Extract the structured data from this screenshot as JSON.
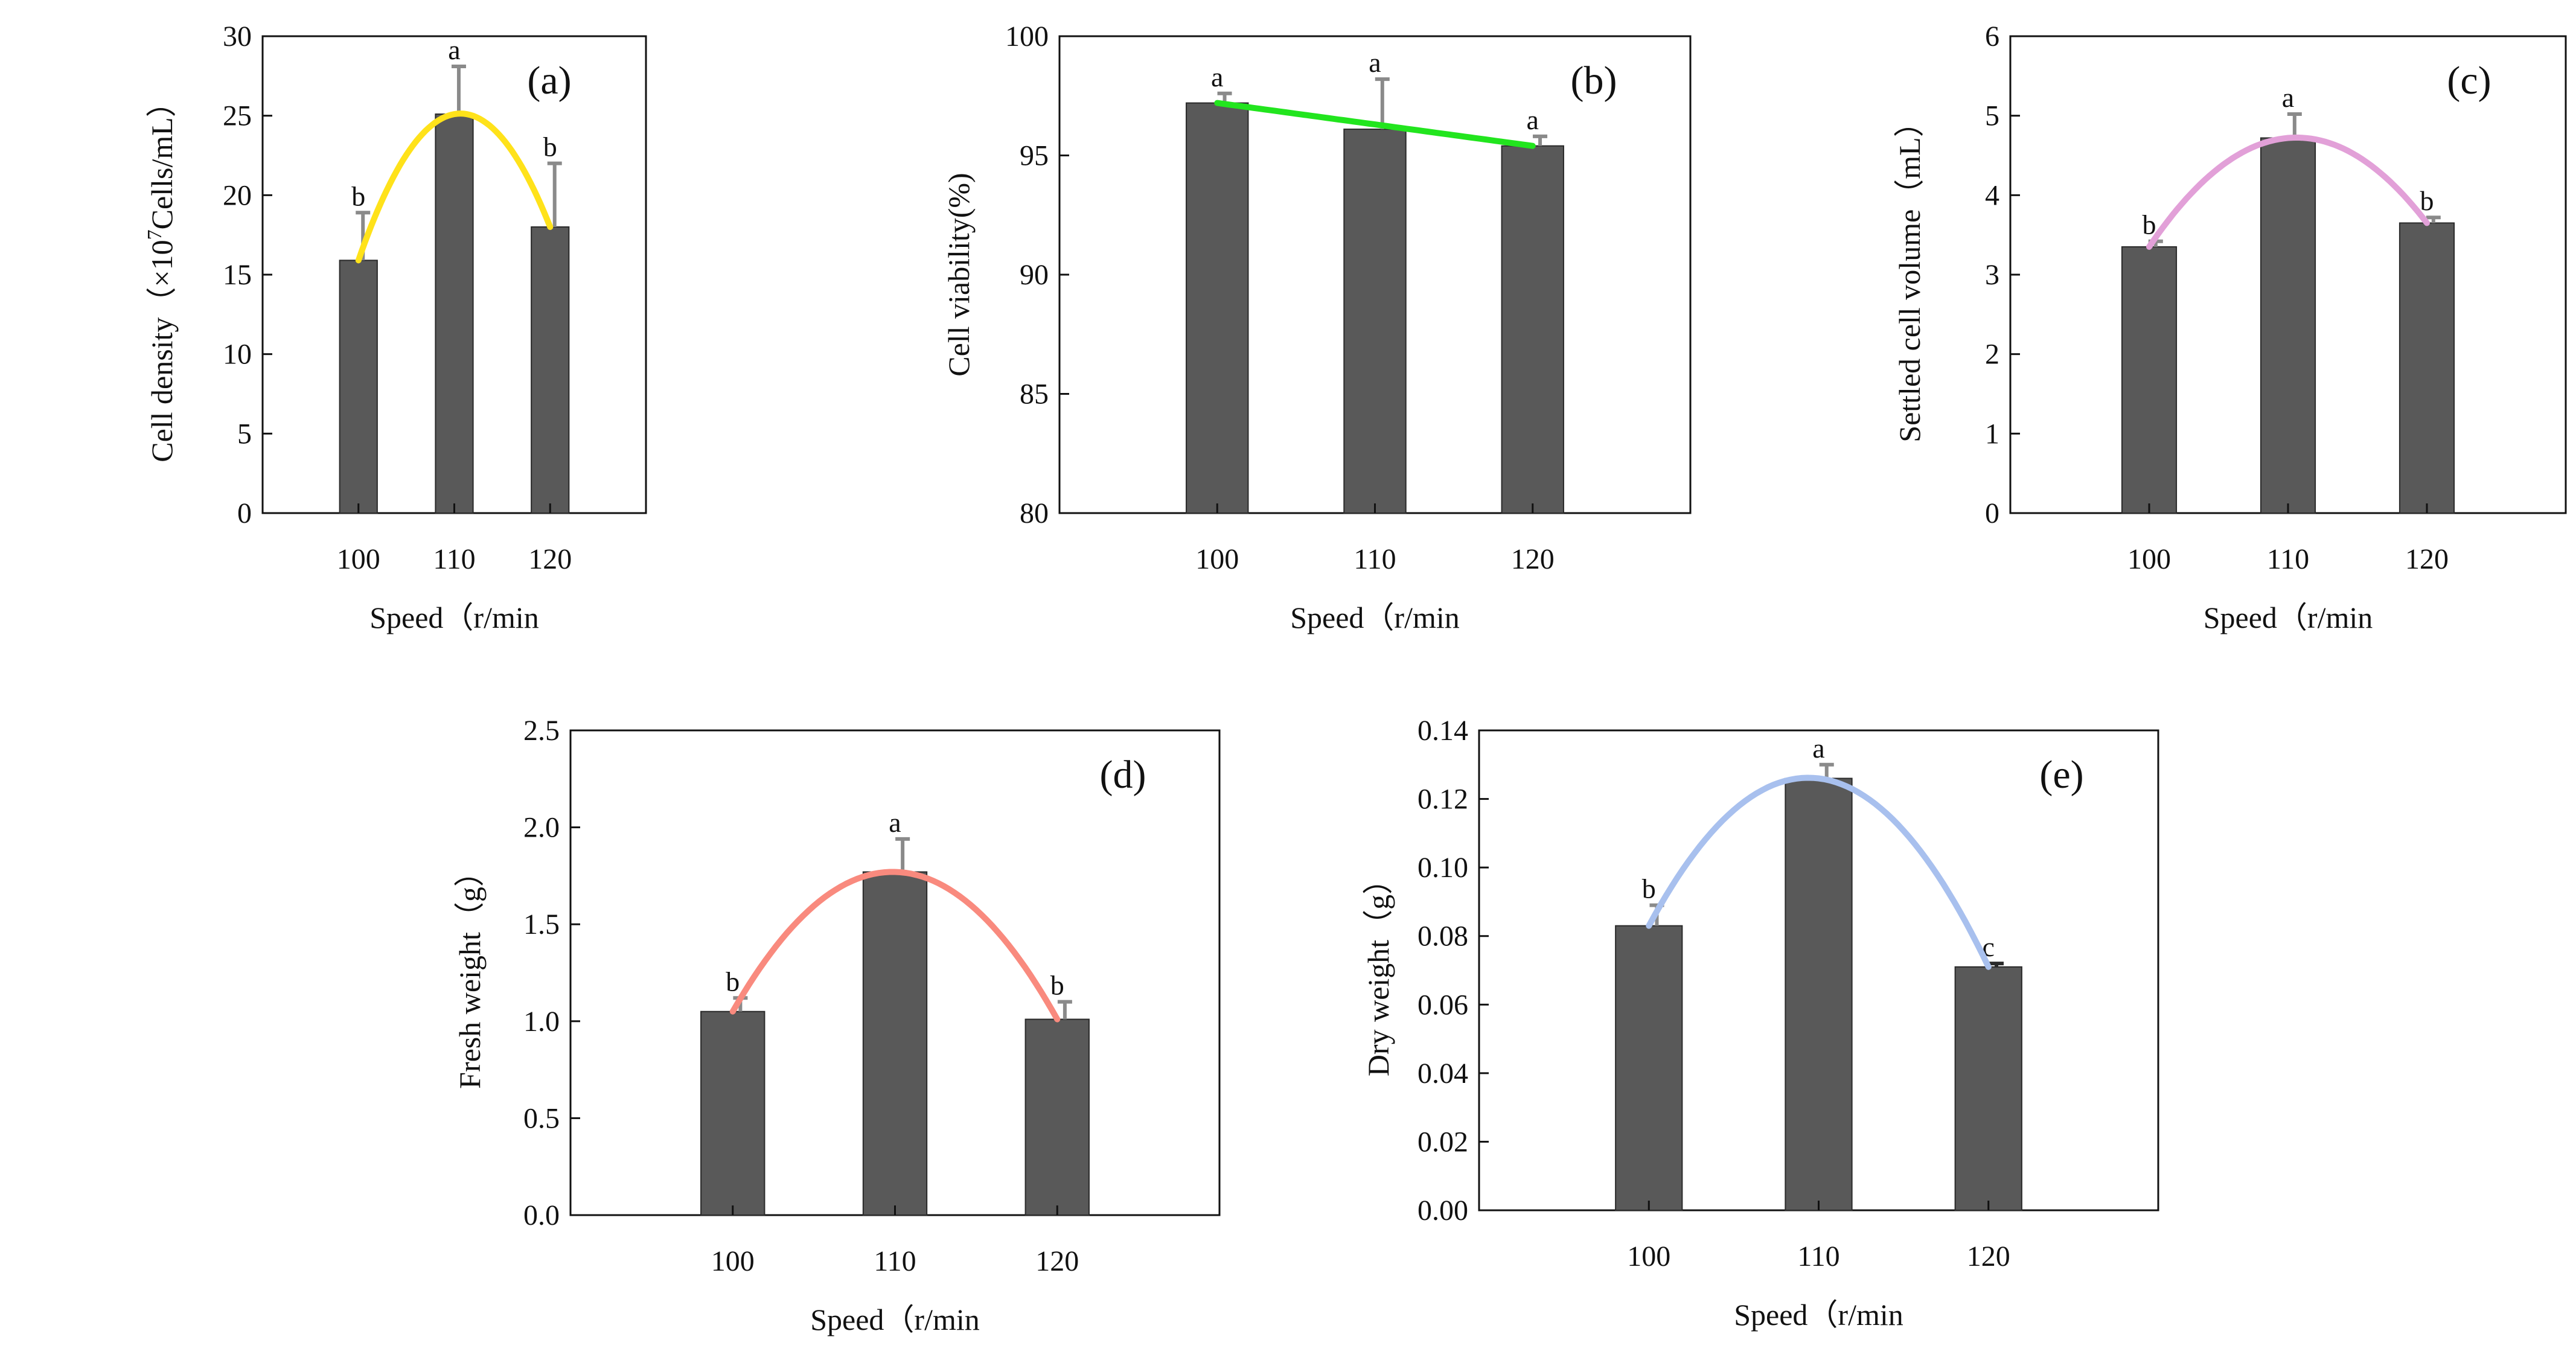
{
  "chart_data": [
    {
      "type": "bar",
      "panel": "(a)",
      "categories": [
        "100",
        "110",
        "120"
      ],
      "values": [
        15.9,
        25.1,
        18.0
      ],
      "errors": [
        3.0,
        3.0,
        4.0
      ],
      "significance": [
        "b",
        "a",
        "b"
      ],
      "xlabel": "Speed（r/min",
      "ylabel": "Cell density（×10^7Cells/mL）",
      "ylim": [
        0,
        30
      ],
      "yticks": [
        "0",
        "5",
        "10",
        "15",
        "20",
        "25",
        "30"
      ],
      "fit": {
        "kind": "quadratic",
        "color": "#ffe21a"
      }
    },
    {
      "type": "bar",
      "panel": "(b)",
      "categories": [
        "100",
        "110",
        "120"
      ],
      "values": [
        97.2,
        96.1,
        95.4
      ],
      "errors": [
        0.4,
        2.1,
        0.4
      ],
      "significance": [
        "a",
        "a",
        "a"
      ],
      "xlabel": "Speed（r/min",
      "ylabel": "Cell viability(%)",
      "ylim": [
        80,
        100
      ],
      "yticks": [
        "80",
        "85",
        "90",
        "95",
        "100"
      ],
      "fit": {
        "kind": "linear",
        "color": "#22e51e"
      }
    },
    {
      "type": "bar",
      "panel": "(c)",
      "categories": [
        "100",
        "110",
        "120"
      ],
      "values": [
        3.35,
        4.72,
        3.65
      ],
      "errors": [
        0.07,
        0.3,
        0.07
      ],
      "significance": [
        "b",
        "a",
        "b"
      ],
      "xlabel": "Speed（r/min",
      "ylabel": "Settled cell volume（mL）",
      "ylim": [
        0,
        6
      ],
      "yticks": [
        "0",
        "1",
        "2",
        "3",
        "4",
        "5",
        "6"
      ],
      "fit": {
        "kind": "quadratic",
        "color": "#e2a0d8"
      }
    },
    {
      "type": "bar",
      "panel": "(d)",
      "categories": [
        "100",
        "110",
        "120"
      ],
      "values": [
        1.05,
        1.77,
        1.01
      ],
      "errors": [
        0.07,
        0.17,
        0.09
      ],
      "significance": [
        "b",
        "a",
        "b"
      ],
      "xlabel": "Speed（r/min",
      "ylabel": "Fresh weight（g）",
      "ylim": [
        0,
        2.5
      ],
      "yticks": [
        "0.0",
        "0.5",
        "1.0",
        "1.5",
        "2.0",
        "2.5"
      ],
      "fit": {
        "kind": "quadratic",
        "color": "#f98a7e"
      }
    },
    {
      "type": "bar",
      "panel": "(e)",
      "categories": [
        "100",
        "110",
        "120"
      ],
      "values": [
        0.083,
        0.126,
        0.071
      ],
      "errors": [
        0.006,
        0.004,
        0.001
      ],
      "significance": [
        "b",
        "a",
        "c"
      ],
      "xlabel": "Speed（r/min",
      "ylabel": "Dry weight（g）",
      "ylim": [
        0,
        0.14
      ],
      "yticks": [
        "0.00",
        "0.02",
        "0.04",
        "0.06",
        "0.08",
        "0.10",
        "0.12",
        "0.14"
      ],
      "fit": {
        "kind": "quadratic",
        "color": "#a8c0ee"
      }
    }
  ],
  "colors": {
    "bar": "#595959",
    "bar_edge": "#2a2a2a",
    "error_bar": "#8a8a8a",
    "error_bar_c": "#2a2a2a",
    "axis": "#111111"
  }
}
